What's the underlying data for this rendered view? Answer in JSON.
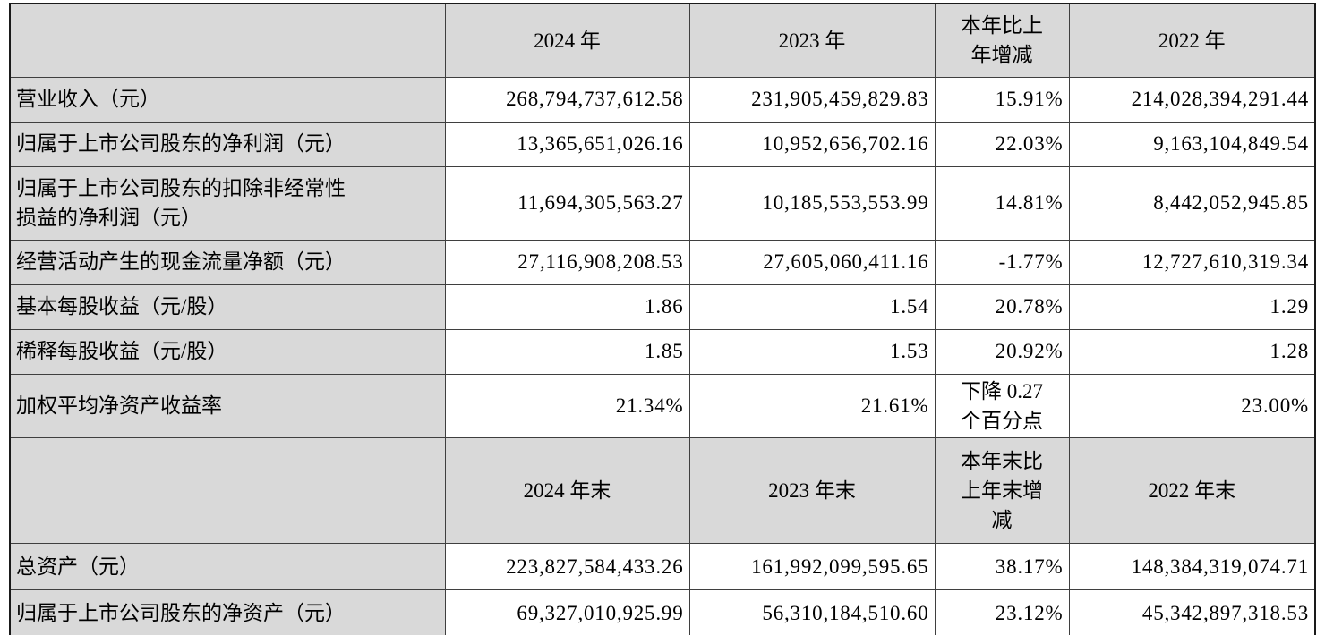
{
  "colors": {
    "header_bg": "#d9d9d9",
    "cell_bg": "#ffffff",
    "border": "#3f3f3f",
    "text": "#000000"
  },
  "table": {
    "description": "Annual report key financial indicators table (Chinese)",
    "rows": [
      {
        "cells": [
          "",
          "2024 年",
          "2023 年",
          "本年比上\n年增减",
          "2022 年"
        ]
      },
      {
        "cells": [
          "营业收入（元）",
          "268,794,737,612.58",
          "231,905,459,829.83",
          "15.91%",
          "214,028,394,291.44"
        ]
      },
      {
        "cells": [
          "归属于上市公司股东的净利润（元）",
          "13,365,651,026.16",
          "10,952,656,702.16",
          "22.03%",
          "9,163,104,849.54"
        ]
      },
      {
        "cells": [
          "归属于上市公司股东的扣除非经常性\n损益的净利润（元）",
          "11,694,305,563.27",
          "10,185,553,553.99",
          "14.81%",
          "8,442,052,945.85"
        ]
      },
      {
        "cells": [
          "经营活动产生的现金流量净额（元）",
          "27,116,908,208.53",
          "27,605,060,411.16",
          "-1.77%",
          "12,727,610,319.34"
        ]
      },
      {
        "cells": [
          "基本每股收益（元/股）",
          "1.86",
          "1.54",
          "20.78%",
          "1.29"
        ]
      },
      {
        "cells": [
          "稀释每股收益（元/股）",
          "1.85",
          "1.53",
          "20.92%",
          "1.28"
        ]
      },
      {
        "cells": [
          "加权平均净资产收益率",
          "21.34%",
          "21.61%",
          "下降 0.27\n个百分点",
          "23.00%"
        ]
      },
      {
        "cells": [
          "",
          "2024 年末",
          "2023 年末",
          "本年末比\n上年末增\n减",
          "2022 年末"
        ]
      },
      {
        "cells": [
          "总资产（元）",
          "223,827,584,433.26",
          "161,992,099,595.65",
          "38.17%",
          "148,384,319,074.71"
        ]
      },
      {
        "cells": [
          "归属于上市公司股东的净资产（元）",
          "69,327,010,925.99",
          "56,310,184,510.60",
          "23.12%",
          "45,342,897,318.53"
        ]
      }
    ]
  }
}
